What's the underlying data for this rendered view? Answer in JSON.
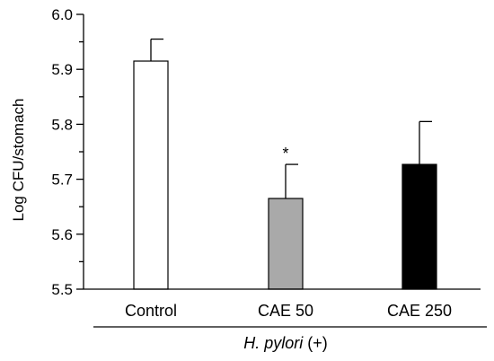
{
  "chart_data": {
    "type": "bar",
    "categories": [
      "Control",
      "CAE 50",
      "CAE 250"
    ],
    "values": [
      5.915,
      5.665,
      5.727
    ],
    "errors": [
      0.04,
      0.062,
      0.078
    ],
    "annotations": [
      "",
      "*",
      ""
    ],
    "bar_colors": [
      "#ffffff",
      "#a9a9a9",
      "#000000"
    ],
    "ylabel": "Log CFU/stomach",
    "ylim": [
      5.5,
      6.0
    ],
    "yticks": [
      5.5,
      5.6,
      5.7,
      5.8,
      5.9,
      6.0
    ],
    "ytick_labels": [
      "5.5",
      "5.6",
      "5.7",
      "5.8",
      "5.9",
      "6.0"
    ],
    "group_label": {
      "italic": "H. pylori",
      "plain": " (+)"
    },
    "grid": false,
    "legend": "none"
  }
}
